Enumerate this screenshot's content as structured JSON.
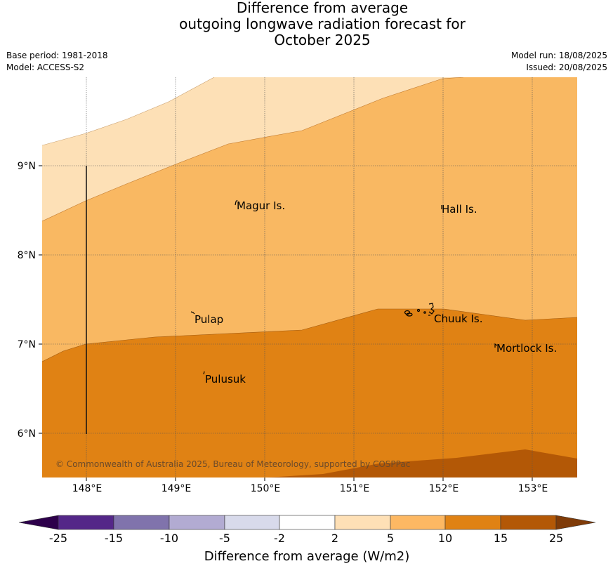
{
  "title": {
    "line1": "Difference from average",
    "line2": "outgoing longwave radiation forecast for",
    "line3": "October 2025"
  },
  "meta": {
    "base_period": "Base period: 1981-2018",
    "model": "Model: ACCESS-S2",
    "model_run": "Model run: 18/08/2025",
    "issued": "Issued: 20/08/2025"
  },
  "map": {
    "lon_range": [
      147.5,
      153.5
    ],
    "lat_range": [
      5.5,
      9.98
    ],
    "lon_ticks": [
      "148°E",
      "149°E",
      "150°E",
      "151°E",
      "152°E",
      "153°E"
    ],
    "lat_ticks": [
      "9°N",
      "8°N",
      "7°N",
      "6°N"
    ],
    "gridlines": true,
    "places": [
      {
        "name": "Magur Is."
      },
      {
        "name": "Hall Is."
      },
      {
        "name": "Pulap"
      },
      {
        "name": "Chuuk Is."
      },
      {
        "name": "Mortlock Is."
      },
      {
        "name": "Pulusuk"
      }
    ],
    "copyright": "© Commonwealth of Australia 2025, Bureau of Meteorology, supported by COSPPac",
    "anomaly_bands_w_m2": [
      {
        "range": "2 to 5",
        "color": "#fde0b6"
      },
      {
        "range": "5 to 10",
        "color": "#f9b862"
      },
      {
        "range": "10 to 15",
        "color": "#e08214"
      },
      {
        "range": "15 to 25",
        "color": "#b35806"
      }
    ]
  },
  "colorbar": {
    "title": "Difference from average (W/m2)",
    "ticks": [
      "-25",
      "-15",
      "-10",
      "-5",
      "-2",
      "2",
      "5",
      "10",
      "15",
      "25"
    ],
    "colors": {
      "under": "#2d004b",
      "b1": "#542788",
      "b2": "#8073ac",
      "b3": "#b2abd2",
      "b4": "#d8daeb",
      "b5": "#ffffff",
      "b6": "#fee0b6",
      "b7": "#fdb863",
      "b8": "#e08214",
      "b9": "#b35806",
      "over": "#7f3b08"
    }
  }
}
